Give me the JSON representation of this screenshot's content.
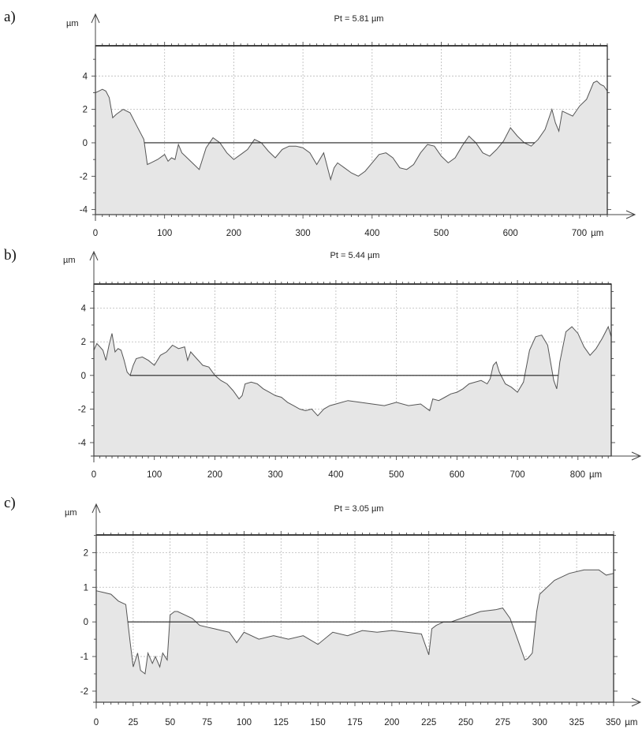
{
  "chart_data": [
    {
      "type": "area",
      "panel_label": "a)",
      "title": "Pt = 5.81 µm",
      "ylabel": "µm",
      "x_unit": "µm",
      "xlim": [
        0,
        740
      ],
      "ylim": [
        -4.3,
        5.81
      ],
      "x_ticks": [
        0,
        100,
        200,
        300,
        400,
        500,
        600,
        700
      ],
      "x_tick_labels": [
        "0",
        "100",
        "200",
        "300",
        "400",
        "500",
        "600",
        "700"
      ],
      "y_ticks": [
        -4,
        -2,
        0,
        2,
        4
      ],
      "y_tick_labels": [
        "-4",
        "-2",
        "0",
        "2",
        "4"
      ],
      "x_minor_step": 10,
      "y_minor_step": 1,
      "grid": true,
      "reference_level": 0,
      "peak_level": 5.81,
      "x": [
        0,
        5,
        10,
        15,
        20,
        25,
        30,
        40,
        50,
        60,
        70,
        75,
        80,
        90,
        100,
        105,
        110,
        115,
        120,
        125,
        130,
        140,
        150,
        160,
        170,
        180,
        190,
        200,
        210,
        220,
        230,
        240,
        250,
        260,
        270,
        280,
        290,
        300,
        310,
        320,
        330,
        335,
        340,
        345,
        350,
        360,
        370,
        380,
        390,
        400,
        410,
        420,
        430,
        440,
        450,
        460,
        470,
        480,
        490,
        500,
        510,
        520,
        530,
        540,
        550,
        560,
        570,
        580,
        590,
        600,
        610,
        620,
        630,
        640,
        650,
        660,
        665,
        670,
        675,
        680,
        690,
        700,
        710,
        720,
        725,
        730,
        735,
        740
      ],
      "values": [
        3.0,
        3.1,
        3.2,
        3.1,
        2.7,
        1.5,
        1.7,
        2.0,
        1.8,
        1.0,
        0.2,
        -1.3,
        -1.2,
        -1.0,
        -0.7,
        -1.1,
        -0.9,
        -1.0,
        -0.1,
        -0.6,
        -0.8,
        -1.2,
        -1.6,
        -0.3,
        0.3,
        0.0,
        -0.6,
        -1.0,
        -0.7,
        -0.4,
        0.2,
        0.0,
        -0.5,
        -0.9,
        -0.4,
        -0.2,
        -0.2,
        -0.3,
        -0.6,
        -1.3,
        -0.6,
        -1.4,
        -2.2,
        -1.5,
        -1.2,
        -1.5,
        -1.8,
        -2.0,
        -1.7,
        -1.2,
        -0.7,
        -0.6,
        -0.9,
        -1.5,
        -1.6,
        -1.3,
        -0.6,
        -0.1,
        -0.2,
        -0.8,
        -1.2,
        -0.9,
        -0.2,
        0.4,
        0.0,
        -0.6,
        -0.8,
        -0.4,
        0.1,
        0.9,
        0.4,
        0.0,
        -0.2,
        0.2,
        0.8,
        2.0,
        1.2,
        0.7,
        1.9,
        1.8,
        1.6,
        2.2,
        2.6,
        3.6,
        3.7,
        3.5,
        3.4,
        3.1
      ]
    },
    {
      "type": "area",
      "panel_label": "b)",
      "title": "Pt = 5.44 µm",
      "ylabel": "µm",
      "x_unit": "µm",
      "xlim": [
        0,
        855
      ],
      "ylim": [
        -4.8,
        5.44
      ],
      "x_ticks": [
        0,
        100,
        200,
        300,
        400,
        500,
        600,
        700,
        800
      ],
      "x_tick_labels": [
        "0",
        "100",
        "200",
        "300",
        "400",
        "500",
        "600",
        "700",
        "800"
      ],
      "y_ticks": [
        -4,
        -2,
        0,
        2,
        4
      ],
      "y_tick_labels": [
        "-4",
        "-2",
        "0",
        "2",
        "4"
      ],
      "x_minor_step": 10,
      "y_minor_step": 1,
      "grid": true,
      "reference_level": 0,
      "peak_level": 5.44,
      "x": [
        0,
        5,
        10,
        15,
        20,
        25,
        30,
        35,
        40,
        45,
        50,
        55,
        60,
        65,
        70,
        80,
        90,
        100,
        110,
        120,
        130,
        140,
        150,
        155,
        160,
        170,
        180,
        190,
        200,
        210,
        220,
        230,
        240,
        245,
        250,
        260,
        270,
        280,
        290,
        300,
        310,
        320,
        330,
        340,
        350,
        360,
        370,
        380,
        390,
        400,
        420,
        440,
        460,
        480,
        500,
        520,
        540,
        555,
        560,
        570,
        580,
        590,
        600,
        610,
        620,
        640,
        650,
        655,
        660,
        665,
        670,
        680,
        690,
        700,
        710,
        720,
        730,
        740,
        750,
        760,
        765,
        770,
        780,
        790,
        800,
        810,
        820,
        830,
        840,
        850,
        855
      ],
      "values": [
        1.5,
        1.9,
        1.7,
        1.5,
        0.9,
        1.8,
        2.5,
        1.4,
        1.6,
        1.5,
        0.9,
        0.2,
        0.0,
        0.6,
        1.0,
        1.1,
        0.9,
        0.6,
        1.2,
        1.4,
        1.8,
        1.6,
        1.7,
        0.9,
        1.4,
        1.0,
        0.6,
        0.5,
        0.0,
        -0.3,
        -0.5,
        -0.9,
        -1.4,
        -1.2,
        -0.5,
        -0.4,
        -0.5,
        -0.8,
        -1.0,
        -1.2,
        -1.3,
        -1.6,
        -1.8,
        -2.0,
        -2.1,
        -2.0,
        -2.4,
        -2.0,
        -1.8,
        -1.7,
        -1.5,
        -1.6,
        -1.7,
        -1.8,
        -1.6,
        -1.8,
        -1.7,
        -2.1,
        -1.4,
        -1.5,
        -1.3,
        -1.1,
        -1.0,
        -0.8,
        -0.5,
        -0.3,
        -0.5,
        -0.2,
        0.6,
        0.8,
        0.2,
        -0.5,
        -0.7,
        -1.0,
        -0.4,
        1.5,
        2.3,
        2.4,
        1.8,
        -0.3,
        -0.8,
        0.8,
        2.6,
        2.9,
        2.5,
        1.7,
        1.2,
        1.6,
        2.2,
        2.9,
        2.3
      ]
    },
    {
      "type": "area",
      "panel_label": "c)",
      "title": "Pt = 3.05 µm",
      "ylabel": "µm",
      "x_unit": "µm",
      "xlim": [
        0,
        350
      ],
      "ylim": [
        -2.32,
        2.51
      ],
      "x_ticks": [
        0,
        25,
        50,
        75,
        100,
        125,
        150,
        175,
        200,
        225,
        250,
        275,
        300,
        325,
        350
      ],
      "x_tick_labels": [
        "0",
        "25",
        "50",
        "75",
        "100",
        "125",
        "150",
        "175",
        "200",
        "225",
        "250",
        "275",
        "300",
        "325",
        "350"
      ],
      "y_ticks": [
        -2,
        -1,
        0,
        1,
        2
      ],
      "y_tick_labels": [
        "-2",
        "-1",
        "0",
        "1",
        "2"
      ],
      "x_minor_step": 5,
      "y_minor_step": 0.5,
      "grid": true,
      "reference_level": 0,
      "peak_level": 2.51,
      "x": [
        0,
        5,
        10,
        15,
        20,
        23,
        25,
        28,
        30,
        33,
        35,
        38,
        40,
        43,
        45,
        48,
        50,
        53,
        55,
        60,
        65,
        70,
        75,
        80,
        85,
        90,
        95,
        100,
        110,
        120,
        130,
        140,
        150,
        160,
        170,
        180,
        190,
        200,
        210,
        220,
        225,
        227,
        230,
        235,
        240,
        250,
        260,
        270,
        275,
        280,
        285,
        290,
        292,
        295,
        298,
        300,
        305,
        310,
        320,
        330,
        340,
        345,
        350
      ],
      "values": [
        0.9,
        0.85,
        0.8,
        0.6,
        0.5,
        -0.6,
        -1.3,
        -0.9,
        -1.4,
        -1.5,
        -0.9,
        -1.2,
        -1.0,
        -1.3,
        -0.9,
        -1.1,
        0.2,
        0.3,
        0.3,
        0.2,
        0.1,
        -0.1,
        -0.15,
        -0.2,
        -0.25,
        -0.3,
        -0.6,
        -0.3,
        -0.5,
        -0.4,
        -0.5,
        -0.4,
        -0.65,
        -0.3,
        -0.4,
        -0.25,
        -0.3,
        -0.25,
        -0.3,
        -0.35,
        -0.95,
        -0.2,
        -0.1,
        0.0,
        0.0,
        0.15,
        0.3,
        0.35,
        0.4,
        0.1,
        -0.5,
        -1.1,
        -1.05,
        -0.9,
        0.3,
        0.8,
        1.0,
        1.2,
        1.4,
        1.5,
        1.5,
        1.35,
        1.4
      ]
    }
  ]
}
